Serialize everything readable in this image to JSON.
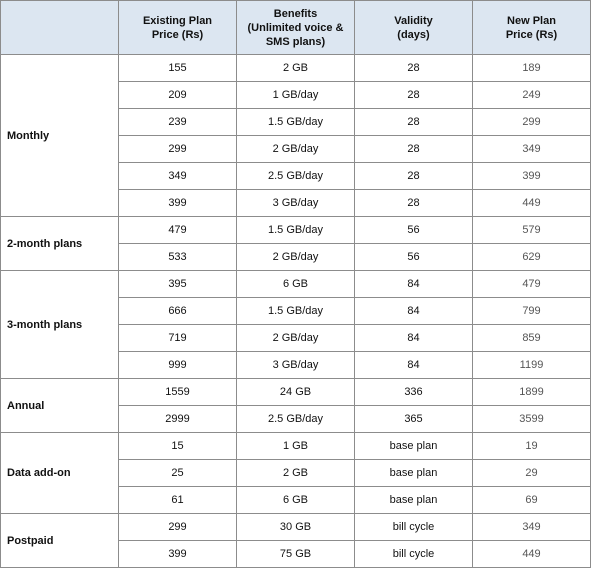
{
  "headers": [
    "",
    "Existing Plan Price (Rs)",
    "Benefits (Unlimited voice & SMS plans)",
    "Validity (days)",
    "New Plan Price (Rs)"
  ],
  "header_lines": [
    [
      ""
    ],
    [
      "Existing Plan",
      "Price (Rs)"
    ],
    [
      "Benefits",
      "(Unlimited voice &",
      "SMS plans)"
    ],
    [
      "Validity",
      "(days)"
    ],
    [
      "New Plan",
      "Price (Rs)"
    ]
  ],
  "groups": [
    {
      "label": "Monthly",
      "rows": [
        {
          "existing": "155",
          "benefits": "2 GB",
          "validity": "28",
          "new": "189"
        },
        {
          "existing": "209",
          "benefits": "1 GB/day",
          "validity": "28",
          "new": "249"
        },
        {
          "existing": "239",
          "benefits": "1.5 GB/day",
          "validity": "28",
          "new": "299"
        },
        {
          "existing": "299",
          "benefits": "2 GB/day",
          "validity": "28",
          "new": "349"
        },
        {
          "existing": "349",
          "benefits": "2.5 GB/day",
          "validity": "28",
          "new": "399"
        },
        {
          "existing": "399",
          "benefits": "3 GB/day",
          "validity": "28",
          "new": "449"
        }
      ]
    },
    {
      "label": "2-month plans",
      "rows": [
        {
          "existing": "479",
          "benefits": "1.5 GB/day",
          "validity": "56",
          "new": "579"
        },
        {
          "existing": "533",
          "benefits": "2 GB/day",
          "validity": "56",
          "new": "629"
        }
      ]
    },
    {
      "label": "3-month plans",
      "rows": [
        {
          "existing": "395",
          "benefits": "6 GB",
          "validity": "84",
          "new": "479"
        },
        {
          "existing": "666",
          "benefits": "1.5 GB/day",
          "validity": "84",
          "new": "799"
        },
        {
          "existing": "719",
          "benefits": "2 GB/day",
          "validity": "84",
          "new": "859"
        },
        {
          "existing": "999",
          "benefits": "3 GB/day",
          "validity": "84",
          "new": "1199"
        }
      ]
    },
    {
      "label": "Annual",
      "rows": [
        {
          "existing": "1559",
          "benefits": "24 GB",
          "validity": "336",
          "new": "1899"
        },
        {
          "existing": "2999",
          "benefits": "2.5 GB/day",
          "validity": "365",
          "new": "3599"
        }
      ]
    },
    {
      "label": "Data add-on",
      "rows": [
        {
          "existing": "15",
          "benefits": "1 GB",
          "validity": "base plan",
          "new": "19"
        },
        {
          "existing": "25",
          "benefits": "2 GB",
          "validity": "base plan",
          "new": "29"
        },
        {
          "existing": "61",
          "benefits": "6 GB",
          "validity": "base plan",
          "new": "69"
        }
      ]
    },
    {
      "label": "Postpaid",
      "rows": [
        {
          "existing": "299",
          "benefits": "30 GB",
          "validity": "bill cycle",
          "new": "349"
        },
        {
          "existing": "399",
          "benefits": "75 GB",
          "validity": "bill cycle",
          "new": "449"
        }
      ]
    }
  ],
  "colors": {
    "header_background": "#dce6f1",
    "border": "#8c8c8c"
  }
}
